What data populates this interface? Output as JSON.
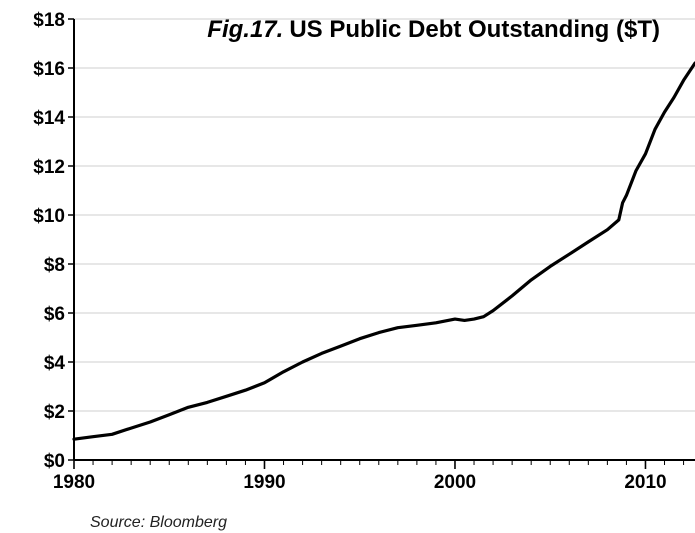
{
  "chart_data": {
    "type": "line",
    "title_prefix": "Fig.17.",
    "title": "US Public Debt Outstanding ($T)",
    "source": "Source: Bloomberg",
    "xlabel": "",
    "ylabel": "",
    "xlim": [
      1980,
      2012.6
    ],
    "ylim": [
      0,
      18
    ],
    "x_ticks": [
      1980,
      1990,
      2000,
      2010
    ],
    "x_tick_labels": [
      "1980",
      "1990",
      "2000",
      "2010"
    ],
    "y_ticks": [
      0,
      2,
      4,
      6,
      8,
      10,
      12,
      14,
      16,
      18
    ],
    "y_tick_labels": [
      "$0",
      "$2",
      "$4",
      "$6",
      "$8",
      "$10",
      "$12",
      "$14",
      "$16",
      "$18"
    ],
    "grid": "horizontal",
    "line_color": "#000000",
    "series": [
      {
        "x": [
          1980,
          1981,
          1982,
          1983,
          1984,
          1985,
          1986,
          1987,
          1988,
          1989,
          1990,
          1991,
          1992,
          1993,
          1994,
          1995,
          1996,
          1997,
          1998,
          1999,
          2000,
          2000.5,
          2001,
          2001.5,
          2002,
          2003,
          2004,
          2005,
          2006,
          2007,
          2008,
          2008.6,
          2008.8,
          2009,
          2009.5,
          2010,
          2010.5,
          2011,
          2011.5,
          2012,
          2012.6
        ],
        "y": [
          0.85,
          0.95,
          1.05,
          1.3,
          1.55,
          1.85,
          2.15,
          2.35,
          2.6,
          2.85,
          3.15,
          3.6,
          4.0,
          4.35,
          4.65,
          4.95,
          5.2,
          5.4,
          5.5,
          5.6,
          5.75,
          5.7,
          5.75,
          5.85,
          6.1,
          6.7,
          7.35,
          7.9,
          8.4,
          8.9,
          9.4,
          9.8,
          10.5,
          10.8,
          11.8,
          12.5,
          13.5,
          14.2,
          14.8,
          15.5,
          16.2
        ]
      }
    ]
  }
}
